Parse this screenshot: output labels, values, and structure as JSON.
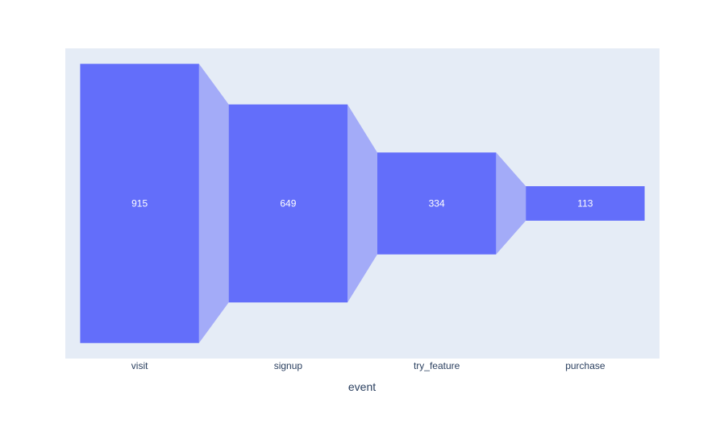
{
  "chart_data": {
    "type": "funnel",
    "categories": [
      "visit",
      "signup",
      "try_feature",
      "purchase"
    ],
    "values": [
      915,
      649,
      334,
      113
    ],
    "xlabel": "event",
    "ylabel": "",
    "title": "",
    "grid": false,
    "legend": "none",
    "colors": {
      "plot_background": "#e5ecf6",
      "bar": "#636efa",
      "connector": "#a3abf8",
      "bar_text": "#ffffff",
      "axis_text": "#2a3f5f"
    }
  }
}
